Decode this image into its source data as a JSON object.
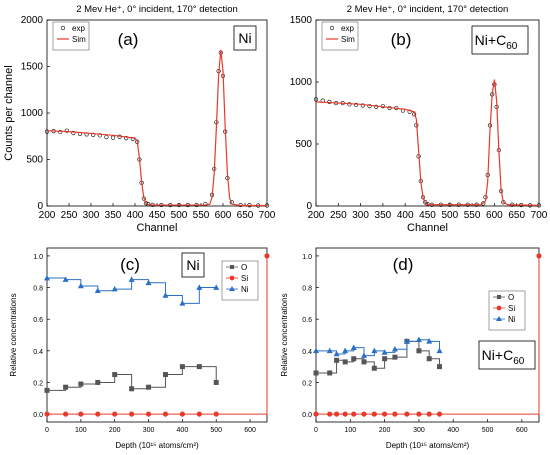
{
  "figure": {
    "panels": [
      "(a)",
      "(b)",
      "(c)",
      "(d)"
    ]
  },
  "chart_data": [
    {
      "id": "a",
      "type": "scatter",
      "panel_label": "(a)",
      "title": "2 Mev He⁺, 0° incident, 170° detection",
      "sample_label": "Ni",
      "xlabel": "Channel",
      "ylabel": "Counts per channel",
      "xlim": [
        200,
        700
      ],
      "ylim": [
        0,
        2000
      ],
      "xticks": [
        200,
        250,
        300,
        350,
        400,
        450,
        500,
        550,
        600,
        650,
        700
      ],
      "yticks": [
        0,
        500,
        1000,
        1500,
        2000
      ],
      "legend": {
        "position": "top-left",
        "entries": [
          "exp",
          "Sim"
        ]
      },
      "series": [
        {
          "name": "exp",
          "marker": "open-circle",
          "color": "#000000",
          "x": [
            200,
            215,
            230,
            245,
            260,
            275,
            290,
            305,
            320,
            335,
            350,
            365,
            380,
            395,
            405,
            410,
            415,
            420,
            425,
            430,
            440,
            460,
            480,
            500,
            520,
            540,
            560,
            575,
            580,
            585,
            590,
            595,
            600,
            605,
            610,
            620,
            640,
            660,
            680,
            700
          ],
          "y": [
            800,
            805,
            795,
            810,
            785,
            775,
            770,
            765,
            760,
            740,
            735,
            745,
            730,
            720,
            690,
            500,
            250,
            80,
            30,
            20,
            12,
            10,
            10,
            10,
            10,
            10,
            20,
            120,
            400,
            900,
            1450,
            1650,
            1400,
            800,
            300,
            40,
            10,
            8,
            5,
            5
          ]
        },
        {
          "name": "Sim",
          "marker": "line",
          "color": "#e8392a",
          "x": [
            200,
            250,
            300,
            350,
            400,
            405,
            410,
            415,
            420,
            425,
            430,
            440,
            500,
            560,
            570,
            575,
            580,
            585,
            590,
            595,
            600,
            605,
            610,
            615,
            620,
            640,
            700
          ],
          "y": [
            810,
            800,
            780,
            760,
            730,
            700,
            520,
            260,
            90,
            30,
            15,
            10,
            10,
            10,
            20,
            90,
            350,
            850,
            1400,
            1680,
            1450,
            850,
            350,
            90,
            20,
            5,
            5
          ]
        }
      ]
    },
    {
      "id": "b",
      "type": "scatter",
      "panel_label": "(b)",
      "title": "2 Mev He⁺, 0° incident, 170° detection",
      "sample_label": "Ni+C60",
      "sample_label_base": "Ni+C",
      "sample_label_sub": "60",
      "xlabel": "Channel",
      "xlim": [
        200,
        700
      ],
      "ylim": [
        0,
        1500
      ],
      "xticks": [
        200,
        250,
        300,
        350,
        400,
        450,
        500,
        550,
        600,
        650,
        700
      ],
      "yticks": [
        0,
        500,
        1000,
        1500
      ],
      "legend": {
        "position": "top-left",
        "entries": [
          "exp",
          "Sim"
        ]
      },
      "series": [
        {
          "name": "exp",
          "marker": "open-circle",
          "color": "#000000",
          "x": [
            200,
            215,
            230,
            245,
            260,
            275,
            290,
            305,
            320,
            335,
            350,
            365,
            380,
            395,
            410,
            420,
            425,
            430,
            435,
            440,
            445,
            450,
            460,
            480,
            500,
            520,
            540,
            560,
            575,
            580,
            585,
            590,
            595,
            600,
            605,
            610,
            615,
            620,
            640,
            660,
            680,
            700
          ],
          "y": [
            860,
            850,
            840,
            830,
            830,
            820,
            815,
            810,
            805,
            800,
            805,
            790,
            790,
            770,
            760,
            740,
            650,
            400,
            200,
            70,
            30,
            15,
            10,
            10,
            10,
            10,
            10,
            10,
            20,
            70,
            250,
            650,
            900,
            980,
            800,
            450,
            120,
            30,
            10,
            8,
            5,
            5
          ]
        },
        {
          "name": "Sim",
          "marker": "line",
          "color": "#e8392a",
          "x": [
            200,
            250,
            300,
            350,
            400,
            420,
            425,
            430,
            435,
            440,
            445,
            450,
            460,
            500,
            570,
            580,
            585,
            590,
            595,
            600,
            605,
            610,
            615,
            620,
            630,
            700
          ],
          "y": [
            840,
            830,
            820,
            800,
            780,
            760,
            700,
            450,
            200,
            70,
            25,
            12,
            10,
            10,
            10,
            40,
            200,
            600,
            900,
            1020,
            850,
            450,
            130,
            30,
            10,
            5
          ]
        }
      ]
    },
    {
      "id": "c",
      "type": "line",
      "panel_label": "(c)",
      "sample_label": "Ni",
      "xlabel": "Depth (10¹⁵ atoms/cm²)",
      "ylabel": "Relative concentrations",
      "xlim": [
        0,
        650
      ],
      "ylim": [
        -0.05,
        1.05
      ],
      "xticks": [
        0,
        100,
        200,
        300,
        400,
        500,
        600
      ],
      "yticks": [
        0.0,
        0.2,
        0.4,
        0.6,
        0.8,
        1.0
      ],
      "legend": {
        "position": "right",
        "entries": [
          "O",
          "Si",
          "Ni"
        ]
      },
      "series": [
        {
          "name": "O",
          "marker": "square",
          "color": "#555555",
          "x": [
            0,
            55,
            100,
            150,
            200,
            250,
            300,
            350,
            400,
            450,
            500
          ],
          "y": [
            0.15,
            0.17,
            0.19,
            0.2,
            0.25,
            0.16,
            0.17,
            0.25,
            0.3,
            0.3,
            0.2
          ]
        },
        {
          "name": "Si",
          "marker": "circle",
          "color": "#e8392a",
          "x": [
            0,
            55,
            100,
            150,
            200,
            250,
            300,
            350,
            400,
            450,
            500,
            650
          ],
          "y": [
            0,
            0,
            0,
            0,
            0,
            0,
            0,
            0,
            0,
            0,
            0,
            1.0
          ]
        },
        {
          "name": "Ni",
          "marker": "triangle",
          "color": "#2a70c8",
          "x": [
            0,
            55,
            100,
            150,
            200,
            250,
            300,
            350,
            400,
            450,
            500
          ],
          "y": [
            0.86,
            0.85,
            0.81,
            0.78,
            0.79,
            0.85,
            0.83,
            0.75,
            0.7,
            0.8,
            0.8
          ]
        }
      ]
    },
    {
      "id": "d",
      "type": "line",
      "panel_label": "(d)",
      "sample_label": "Ni+C60",
      "sample_label_base": "Ni+C",
      "sample_label_sub": "60",
      "xlabel": "Depth (10¹⁵ atoms/cm²)",
      "ylabel": "Relative concentrations",
      "xlim": [
        0,
        650
      ],
      "ylim": [
        -0.05,
        1.05
      ],
      "xticks": [
        0,
        100,
        200,
        300,
        400,
        500,
        600
      ],
      "yticks": [
        0.0,
        0.2,
        0.4,
        0.6,
        0.8,
        1.0
      ],
      "legend": {
        "position": "right",
        "entries": [
          "O",
          "Si",
          "Ni"
        ]
      },
      "series": [
        {
          "name": "O",
          "marker": "square",
          "color": "#555555",
          "x": [
            0,
            40,
            60,
            85,
            110,
            140,
            170,
            200,
            230,
            265,
            300,
            330,
            360
          ],
          "y": [
            0.26,
            0.26,
            0.34,
            0.33,
            0.35,
            0.33,
            0.29,
            0.35,
            0.36,
            0.46,
            0.4,
            0.35,
            0.3
          ]
        },
        {
          "name": "Si",
          "marker": "circle",
          "color": "#e8392a",
          "x": [
            0,
            40,
            60,
            85,
            110,
            140,
            170,
            200,
            230,
            265,
            300,
            330,
            360,
            650
          ],
          "y": [
            0,
            0,
            0,
            0,
            0,
            0,
            0,
            0,
            0,
            0,
            0,
            0,
            0,
            1.0
          ]
        },
        {
          "name": "Ni",
          "marker": "triangle",
          "color": "#2a70c8",
          "x": [
            0,
            40,
            60,
            85,
            110,
            140,
            170,
            200,
            230,
            265,
            300,
            330,
            360
          ],
          "y": [
            0.4,
            0.4,
            0.38,
            0.4,
            0.42,
            0.37,
            0.4,
            0.39,
            0.41,
            0.46,
            0.47,
            0.46,
            0.4
          ]
        }
      ]
    }
  ]
}
